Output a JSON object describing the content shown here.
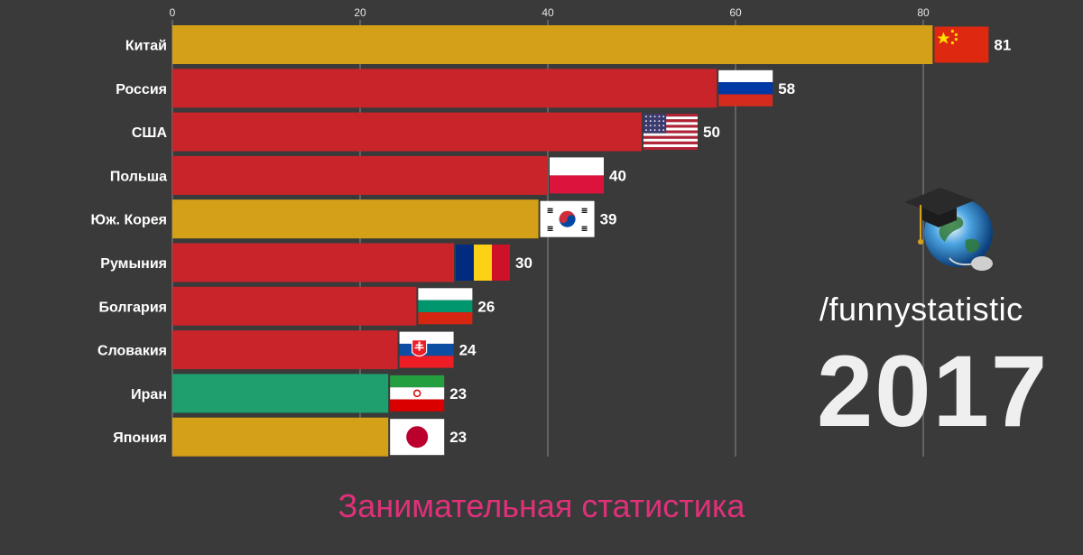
{
  "chart_data": {
    "type": "bar",
    "orientation": "horizontal",
    "categories": [
      "Китай",
      "Россия",
      "США",
      "Польша",
      "Юж. Корея",
      "Румыния",
      "Болгария",
      "Словакия",
      "Иран",
      "Япония"
    ],
    "values": [
      81,
      58,
      50,
      40,
      39,
      30,
      26,
      24,
      23,
      23
    ],
    "value_labels": [
      "81",
      "58",
      "50",
      "40",
      "39",
      "30",
      "26",
      "24",
      "23",
      "23"
    ],
    "bar_colors": [
      "#d4a017",
      "#c8242a",
      "#c8242a",
      "#c8242a",
      "#d4a017",
      "#c8242a",
      "#c8242a",
      "#c8242a",
      "#1f9e6e",
      "#d4a017"
    ],
    "flags": [
      "china-flag",
      "russia-flag",
      "usa-flag",
      "poland-flag",
      "south-korea-flag",
      "romania-flag",
      "bulgaria-flag",
      "slovakia-flag",
      "iran-flag",
      "japan-flag"
    ],
    "xticks": [
      "0",
      "20",
      "40",
      "60",
      "80"
    ],
    "xtick_values": [
      0,
      20,
      40,
      60,
      80
    ],
    "xlim": [
      0,
      90
    ],
    "grid": true,
    "title": "",
    "xlabel": "",
    "ylabel": ""
  },
  "watermark": {
    "handle": "/funnystatistic",
    "year": "2017",
    "logo_icon": "graduation-globe-icon"
  },
  "footer": {
    "caption": "Занимательная статистика",
    "caption_color": "#e0307a"
  },
  "colors": {
    "background": "#3a3a3a",
    "gridline": "#8a8a8a"
  }
}
